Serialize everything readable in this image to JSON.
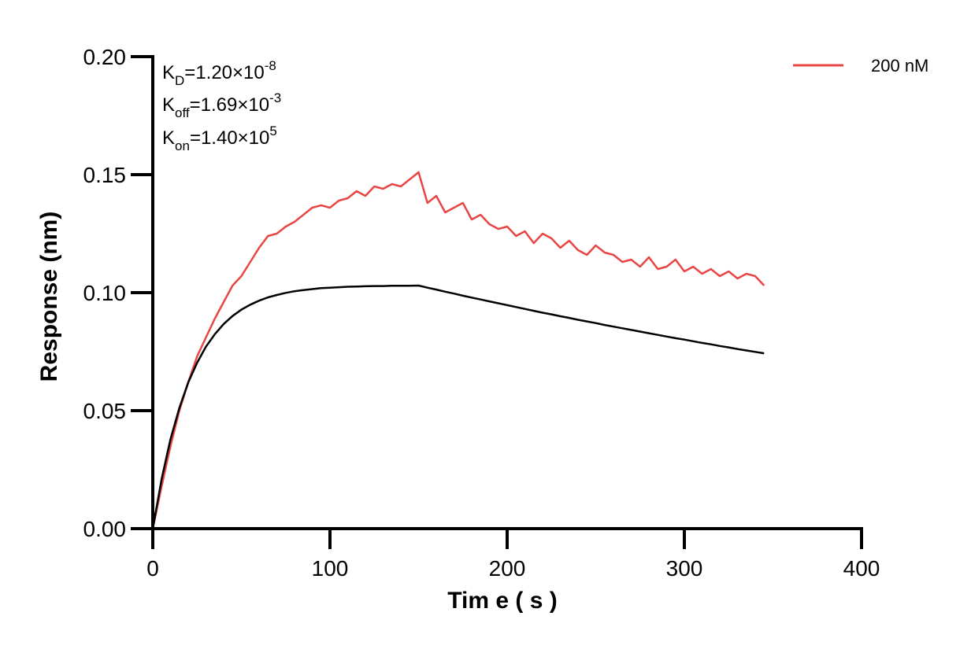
{
  "chart_data": {
    "type": "line",
    "title": "",
    "xlabel": "Tim e ( s )",
    "ylabel": "Response (nm)",
    "xlim": [
      0,
      400
    ],
    "ylim": [
      0,
      0.2
    ],
    "x_ticks": [
      0,
      100,
      200,
      300,
      400
    ],
    "x_tick_labels": [
      "0",
      "100",
      "200",
      "300",
      "400"
    ],
    "y_ticks": [
      0,
      0.05,
      0.1,
      0.15,
      0.2
    ],
    "y_tick_labels": [
      "0.00",
      "0.05",
      "0.10",
      "0.15",
      "0.20"
    ],
    "grid": false,
    "legend_position": "top-right",
    "annotations": {
      "kd": {
        "main": "K",
        "sub": "D",
        "value": "=1.20×10",
        "exp": "-8"
      },
      "koff": {
        "main": "K",
        "sub": "off",
        "value": "=1.69×10",
        "exp": "-3"
      },
      "kon": {
        "main": "K",
        "sub": "on",
        "value": "=1.40×10",
        "exp": "5"
      }
    },
    "series": [
      {
        "name": "200 nM",
        "color": "#e84545",
        "x": [
          0,
          5,
          10,
          15,
          20,
          25,
          30,
          35,
          40,
          45,
          50,
          55,
          60,
          65,
          70,
          75,
          80,
          85,
          90,
          95,
          100,
          105,
          110,
          115,
          120,
          125,
          130,
          135,
          140,
          145,
          150,
          155,
          160,
          165,
          170,
          175,
          180,
          185,
          190,
          195,
          200,
          205,
          210,
          215,
          220,
          225,
          230,
          235,
          240,
          245,
          250,
          255,
          260,
          265,
          270,
          275,
          280,
          285,
          290,
          295,
          300,
          305,
          310,
          315,
          320,
          325,
          330,
          335,
          340,
          345
        ],
        "values": [
          0.0,
          0.018,
          0.035,
          0.05,
          0.062,
          0.073,
          0.081,
          0.089,
          0.096,
          0.103,
          0.107,
          0.113,
          0.119,
          0.124,
          0.125,
          0.128,
          0.13,
          0.133,
          0.136,
          0.137,
          0.136,
          0.139,
          0.14,
          0.143,
          0.141,
          0.145,
          0.144,
          0.146,
          0.145,
          0.148,
          0.151,
          0.138,
          0.141,
          0.134,
          0.136,
          0.138,
          0.131,
          0.133,
          0.129,
          0.127,
          0.128,
          0.124,
          0.126,
          0.121,
          0.125,
          0.123,
          0.119,
          0.122,
          0.118,
          0.116,
          0.12,
          0.117,
          0.116,
          0.113,
          0.114,
          0.111,
          0.115,
          0.11,
          0.111,
          0.114,
          0.109,
          0.111,
          0.108,
          0.11,
          0.107,
          0.109,
          0.106,
          0.108,
          0.107,
          0.103
        ]
      },
      {
        "name": "",
        "color": "#000000",
        "x": [
          0,
          5,
          10,
          15,
          20,
          25,
          30,
          35,
          40,
          45,
          50,
          55,
          60,
          65,
          70,
          75,
          80,
          85,
          90,
          95,
          100,
          105,
          110,
          115,
          120,
          125,
          130,
          135,
          140,
          145,
          150,
          155,
          160,
          165,
          170,
          175,
          180,
          185,
          190,
          195,
          200,
          205,
          210,
          215,
          220,
          225,
          230,
          235,
          240,
          245,
          250,
          255,
          260,
          265,
          270,
          275,
          280,
          285,
          290,
          295,
          300,
          305,
          310,
          315,
          320,
          325,
          330,
          335,
          340,
          345
        ],
        "values": [
          0.0,
          0.0211,
          0.0379,
          0.0512,
          0.0619,
          0.0703,
          0.0771,
          0.0824,
          0.0867,
          0.0901,
          0.0928,
          0.0949,
          0.0966,
          0.098,
          0.099,
          0.0999,
          0.1006,
          0.1011,
          0.1015,
          0.1019,
          0.1021,
          0.1023,
          0.1025,
          0.1026,
          0.1027,
          0.1028,
          0.1028,
          0.1029,
          0.1029,
          0.1029,
          0.103,
          0.1021,
          0.1013,
          0.1004,
          0.0996,
          0.0987,
          0.0979,
          0.0971,
          0.0963,
          0.0955,
          0.0947,
          0.0939,
          0.0931,
          0.0923,
          0.0915,
          0.0908,
          0.09,
          0.0893,
          0.0885,
          0.0878,
          0.0871,
          0.0863,
          0.0856,
          0.0849,
          0.0842,
          0.0835,
          0.0828,
          0.0821,
          0.0814,
          0.0807,
          0.0801,
          0.0794,
          0.0787,
          0.0781,
          0.0774,
          0.0768,
          0.0761,
          0.0755,
          0.0749,
          0.0743
        ]
      }
    ]
  }
}
